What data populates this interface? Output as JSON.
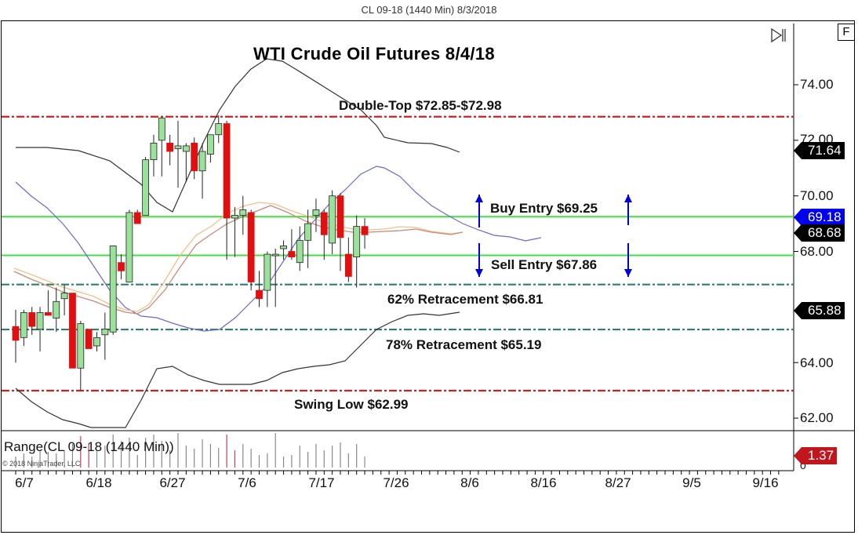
{
  "window": {
    "title": "CL 09-18 (1440 Min)  8/3/2018"
  },
  "toolbar": {
    "f_button_label": "F",
    "skip_to_end_icon": "skip-to-end-icon"
  },
  "chart_data": {
    "type": "candlestick",
    "title": "WTI Crude Oil Futures 8/4/18",
    "instrument": "CL 09-18 (1440 Min)",
    "xlabel": "",
    "ylabel": "",
    "ylim": [
      61.6,
      75.0
    ],
    "y_ticks": [
      "74.00",
      "72.00",
      "70.00",
      "68.00",
      "64.00",
      "62.00"
    ],
    "x_ticks": [
      "6/7",
      "6/18",
      "6/27",
      "7/6",
      "7/17",
      "7/26",
      "8/6",
      "8/16",
      "8/27",
      "9/5",
      "9/16"
    ],
    "grid": false,
    "candles": [
      {
        "o": 65.3,
        "h": 65.9,
        "l": 64.0,
        "c": 64.8
      },
      {
        "o": 64.9,
        "h": 65.9,
        "l": 64.6,
        "c": 65.8
      },
      {
        "o": 65.8,
        "h": 66.0,
        "l": 65.0,
        "c": 65.3
      },
      {
        "o": 65.2,
        "h": 66.0,
        "l": 64.4,
        "c": 65.8
      },
      {
        "o": 65.8,
        "h": 66.6,
        "l": 65.7,
        "c": 65.7
      },
      {
        "o": 65.6,
        "h": 66.7,
        "l": 65.1,
        "c": 66.2
      },
      {
        "o": 66.3,
        "h": 66.8,
        "l": 65.7,
        "c": 66.5
      },
      {
        "o": 66.5,
        "h": 66.5,
        "l": 63.8,
        "c": 63.8
      },
      {
        "o": 63.8,
        "h": 65.5,
        "l": 63.0,
        "c": 65.4
      },
      {
        "o": 65.2,
        "h": 65.2,
        "l": 64.5,
        "c": 64.5
      },
      {
        "o": 64.6,
        "h": 65.1,
        "l": 64.4,
        "c": 64.9
      },
      {
        "o": 65.0,
        "h": 65.8,
        "l": 64.1,
        "c": 65.2
      },
      {
        "o": 65.1,
        "h": 68.1,
        "l": 65.0,
        "c": 68.2
      },
      {
        "o": 67.6,
        "h": 67.9,
        "l": 67.0,
        "c": 67.3
      },
      {
        "o": 66.9,
        "h": 69.5,
        "l": 66.9,
        "c": 69.4
      },
      {
        "o": 69.4,
        "h": 69.5,
        "l": 69.0,
        "c": 69.0
      },
      {
        "o": 69.3,
        "h": 71.4,
        "l": 69.3,
        "c": 71.3
      },
      {
        "o": 71.3,
        "h": 72.2,
        "l": 70.7,
        "c": 71.9
      },
      {
        "o": 72.0,
        "h": 72.7,
        "l": 70.7,
        "c": 72.8
      },
      {
        "o": 71.9,
        "h": 72.2,
        "l": 71.1,
        "c": 71.6
      },
      {
        "o": 71.7,
        "h": 72.7,
        "l": 70.3,
        "c": 71.8
      },
      {
        "o": 71.6,
        "h": 71.9,
        "l": 70.5,
        "c": 71.8
      },
      {
        "o": 71.9,
        "h": 72.1,
        "l": 70.6,
        "c": 70.9
      },
      {
        "o": 70.9,
        "h": 71.9,
        "l": 69.9,
        "c": 71.6
      },
      {
        "o": 71.5,
        "h": 72.2,
        "l": 71.2,
        "c": 72.2
      },
      {
        "o": 72.2,
        "h": 72.9,
        "l": 71.9,
        "c": 72.6
      },
      {
        "o": 72.6,
        "h": 72.7,
        "l": 67.7,
        "c": 69.2
      },
      {
        "o": 69.2,
        "h": 69.6,
        "l": 67.8,
        "c": 69.3
      },
      {
        "o": 69.3,
        "h": 70.0,
        "l": 68.6,
        "c": 69.5
      },
      {
        "o": 69.4,
        "h": 69.5,
        "l": 66.6,
        "c": 66.9
      },
      {
        "o": 66.6,
        "h": 67.3,
        "l": 66.0,
        "c": 66.3
      },
      {
        "o": 66.6,
        "h": 68.0,
        "l": 66.0,
        "c": 67.9
      },
      {
        "o": 67.9,
        "h": 68.1,
        "l": 66.0,
        "c": 67.9
      },
      {
        "o": 68.1,
        "h": 68.4,
        "l": 67.7,
        "c": 68.2
      },
      {
        "o": 68.0,
        "h": 68.8,
        "l": 67.7,
        "c": 67.8
      },
      {
        "o": 67.6,
        "h": 68.9,
        "l": 67.3,
        "c": 68.4
      },
      {
        "o": 68.4,
        "h": 69.5,
        "l": 67.4,
        "c": 69.0
      },
      {
        "o": 69.3,
        "h": 69.9,
        "l": 68.7,
        "c": 69.5
      },
      {
        "o": 69.4,
        "h": 69.5,
        "l": 67.7,
        "c": 68.6
      },
      {
        "o": 68.3,
        "h": 70.2,
        "l": 67.9,
        "c": 70.0
      },
      {
        "o": 70.0,
        "h": 70.1,
        "l": 67.3,
        "c": 68.5
      },
      {
        "o": 67.9,
        "h": 68.5,
        "l": 66.9,
        "c": 67.1
      },
      {
        "o": 67.8,
        "h": 69.3,
        "l": 66.7,
        "c": 68.9
      },
      {
        "o": 68.9,
        "h": 69.2,
        "l": 68.1,
        "c": 68.6
      }
    ],
    "horizontal_levels": [
      {
        "label": "Double-Top $72.85-$72.98",
        "value": 72.85,
        "color": "#cc2222",
        "style": "dash-dot"
      },
      {
        "label": "Buy Entry $69.25",
        "value": 69.25,
        "color": "#44dd44",
        "style": "solid"
      },
      {
        "label": "Sell Entry $67.86",
        "value": 67.86,
        "color": "#44dd44",
        "style": "solid"
      },
      {
        "label": "62% Retracement $66.81",
        "value": 66.81,
        "color": "#2f7f6f",
        "style": "dash-dot"
      },
      {
        "label": "78% Retracement $65.19",
        "value": 65.19,
        "color": "#2f7f6f",
        "style": "dash-dot"
      },
      {
        "label": "Swing Low $62.99",
        "value": 62.99,
        "color": "#cc2222",
        "style": "dash-dot"
      }
    ],
    "price_markers": [
      {
        "value": "71.64",
        "color": "#000000"
      },
      {
        "value": "69.18",
        "color": "#0000ee"
      },
      {
        "value": "68.68",
        "color": "#000000"
      },
      {
        "value": "65.88",
        "color": "#000000"
      }
    ],
    "sub_panel": {
      "name": "Range(CL 09-18 (1440 Min))",
      "current_value": "1.37",
      "marker_color": "#c0171f",
      "y_tick": "0"
    }
  },
  "annotations": {
    "double_top": "Double-Top $72.85-$72.98",
    "buy_entry": "Buy Entry $69.25",
    "sell_entry": "Sell Entry $67.86",
    "retr_62": "62% Retracement $66.81",
    "retr_78": "78% Retracement $65.19",
    "swing_low": "Swing Low $62.99"
  },
  "yaxis": {
    "t74": "74.00",
    "t72": "72.00",
    "t70": "70.00",
    "t68": "68.00",
    "t64": "64.00",
    "t62": "62.00",
    "t0": "0"
  },
  "xaxis": {
    "d1": "6/7",
    "d2": "6/18",
    "d3": "6/27",
    "d4": "7/6",
    "d5": "7/17",
    "d6": "7/26",
    "d7": "8/6",
    "d8": "8/16",
    "d9": "8/27",
    "d10": "9/5",
    "d11": "9/16"
  },
  "markers": {
    "m1": "71.64",
    "m2": "69.18",
    "m3": "68.68",
    "m4": "65.88",
    "range": "1.37"
  },
  "range_panel": {
    "label": "Range(CL 09-18 (1440 Min))",
    "copyright": "© 2018 NinjaTrader, LLC"
  },
  "colors": {
    "up_candle": "#9be09b",
    "down_candle": "#e01010",
    "buy_arrow": "#0000dd",
    "bollinger": "#333333",
    "ma_blue": "#6a6ac8"
  }
}
